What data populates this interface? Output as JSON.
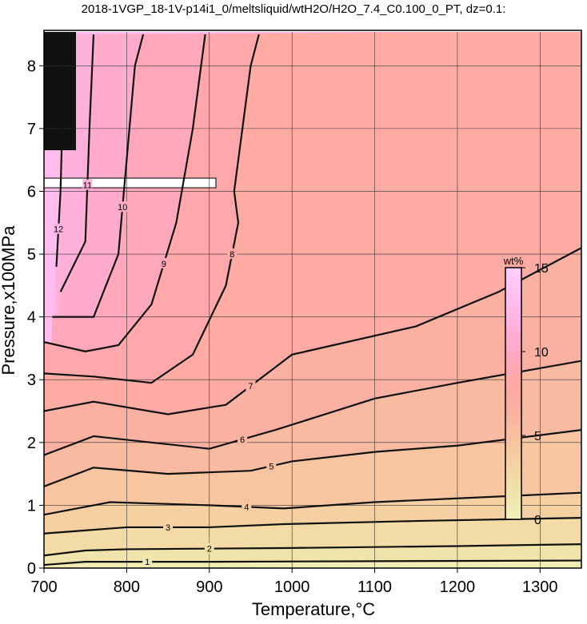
{
  "chart_data": {
    "type": "contour",
    "title": "2018-1VGP_18-1V-p14i1_0/meltsliquid/wtH2O/H2O_7.4_C0.100_0_PT, dz=0.1:",
    "xlabel": "Temperature,°C",
    "ylabel": "Pressure,x100MPa",
    "xlim": [
      700,
      1350
    ],
    "ylim": [
      0,
      8.5
    ],
    "xticks": [
      700,
      800,
      900,
      1000,
      1100,
      1200,
      1300
    ],
    "yticks": [
      0,
      1,
      2,
      3,
      4,
      5,
      6,
      7,
      8
    ],
    "grid": true,
    "contours": [
      {
        "level": 1,
        "x": [
          700,
          750,
          900,
          1100,
          1350
        ],
        "y": [
          0.05,
          0.1,
          0.1,
          0.11,
          0.12
        ]
      },
      {
        "level": 2,
        "x": [
          700,
          750,
          800,
          1000,
          1200,
          1350
        ],
        "y": [
          0.2,
          0.28,
          0.3,
          0.32,
          0.35,
          0.38
        ]
      },
      {
        "level": 3,
        "x": [
          700,
          750,
          800,
          900,
          990,
          1150,
          1350
        ],
        "y": [
          0.55,
          0.6,
          0.65,
          0.65,
          0.7,
          0.75,
          0.8
        ]
      },
      {
        "level": 4,
        "x": [
          700,
          780,
          900,
          990,
          1100,
          1350
        ],
        "y": [
          0.85,
          1.05,
          1.0,
          0.95,
          1.05,
          1.2
        ]
      },
      {
        "level": 5,
        "x": [
          700,
          760,
          850,
          950,
          1000,
          1100,
          1200,
          1350
        ],
        "y": [
          1.3,
          1.6,
          1.5,
          1.55,
          1.7,
          1.85,
          1.95,
          2.2
        ]
      },
      {
        "level": 6,
        "x": [
          700,
          760,
          900,
          980,
          1100,
          1200,
          1350
        ],
        "y": [
          1.8,
          2.1,
          1.9,
          2.2,
          2.7,
          2.95,
          3.3
        ]
      },
      {
        "level": 7,
        "x": [
          700,
          760,
          850,
          920,
          980,
          1000,
          1150,
          1250,
          1350
        ],
        "y": [
          2.5,
          2.65,
          2.45,
          2.6,
          3.2,
          3.4,
          3.85,
          4.4,
          5.1
        ]
      },
      {
        "level": 8,
        "x": [
          700,
          760,
          830,
          880,
          920,
          935,
          930,
          940,
          950,
          960
        ],
        "y": [
          3.1,
          3.05,
          2.95,
          3.4,
          4.5,
          5.5,
          6.0,
          7.0,
          8.0,
          8.5
        ]
      },
      {
        "level": 9,
        "x": [
          700,
          750,
          790,
          830,
          860,
          880,
          890,
          895
        ],
        "y": [
          3.6,
          3.45,
          3.55,
          4.2,
          5.5,
          7.0,
          8.0,
          8.5
        ]
      },
      {
        "level": 10,
        "x": [
          710,
          760,
          790,
          800,
          810,
          820
        ],
        "y": [
          4.0,
          4.0,
          5.0,
          6.5,
          8.0,
          8.5
        ]
      },
      {
        "level": 11,
        "x": [
          720,
          750,
          755,
          760
        ],
        "y": [
          4.4,
          5.2,
          7.0,
          8.5
        ]
      },
      {
        "level": 12,
        "x": [
          715,
          720,
          725
        ],
        "y": [
          4.8,
          6.0,
          8.5
        ]
      }
    ],
    "colorbar": {
      "label": "wt%",
      "lim": [
        0,
        15
      ],
      "ticks": [
        0,
        5,
        10,
        15
      ],
      "colormap": [
        [
          0,
          "#f0f0b8"
        ],
        [
          2,
          "#f0e0a8"
        ],
        [
          4,
          "#f6caa0"
        ],
        [
          6,
          "#f8b4a0"
        ],
        [
          8,
          "#ffa8a4"
        ],
        [
          10,
          "#ffa8c4"
        ],
        [
          12,
          "#ffb4e4"
        ],
        [
          15,
          "#ffd0ff"
        ]
      ]
    }
  }
}
